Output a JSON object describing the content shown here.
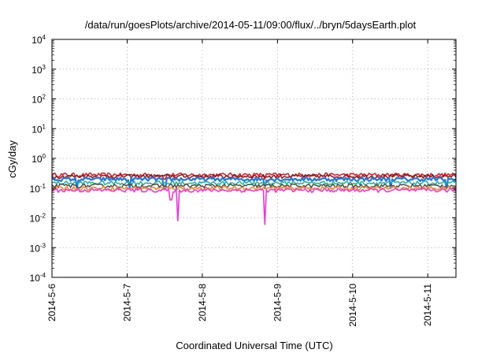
{
  "chart_data": {
    "type": "line",
    "title": "/data/run/goesPlots/archive/2014-05-11/09:00/flux/../bryn/5daysEarth.plot",
    "xlabel": "Coordinated Universal Time (UTC)",
    "ylabel": "cGy/day",
    "y_scale": "log",
    "ylim": [
      0.0001,
      10000
    ],
    "y_ticks": [
      {
        "base": "10",
        "exp": "4"
      },
      {
        "base": "10",
        "exp": "3"
      },
      {
        "base": "10",
        "exp": "2"
      },
      {
        "base": "10",
        "exp": "1"
      },
      {
        "base": "10",
        "exp": "0"
      },
      {
        "base": "10",
        "exp": "-1"
      },
      {
        "base": "10",
        "exp": "-2"
      },
      {
        "base": "10",
        "exp": "-3"
      },
      {
        "base": "10",
        "exp": "-4"
      }
    ],
    "xlim": [
      "2014-05-06T00:00",
      "2014-05-11T09:00"
    ],
    "x_ticks": [
      "2014-5-6",
      "2014-5-7",
      "2014-5-8",
      "2014-5-9",
      "2014-5-10",
      "2014-5-11"
    ],
    "grid": true,
    "series": [
      {
        "color": "#e8141c",
        "baseline": 0.28,
        "spikes": [
          [
            "2014-05-07T12:00",
            0.2
          ],
          [
            "2014-05-08T20:00",
            0.2
          ]
        ]
      },
      {
        "color": "#8b1a1a",
        "baseline": 0.25,
        "spikes": []
      },
      {
        "color": "#1f77e0",
        "baseline": 0.2,
        "spikes": [
          [
            "2014-05-06T08:00",
            0.1
          ],
          [
            "2014-05-07T01:00",
            0.1
          ],
          [
            "2014-05-07T12:00",
            0.1
          ],
          [
            "2014-05-08T20:00",
            0.1
          ],
          [
            "2014-05-10T12:00",
            0.1
          ],
          [
            "2014-05-11T06:00",
            0.1
          ]
        ]
      },
      {
        "color": "#1db39c",
        "baseline": 0.15,
        "spikes": []
      },
      {
        "color": "#4c4c4c",
        "baseline": 0.12,
        "spikes": []
      },
      {
        "color": "#f08a1c",
        "baseline": 0.1,
        "spikes": []
      },
      {
        "color": "#ff2adf",
        "baseline": 0.085,
        "spikes": [
          [
            "2014-05-07T14:00",
            0.04
          ],
          [
            "2014-05-07T16:00",
            0.008
          ],
          [
            "2014-05-08T20:00",
            0.006
          ]
        ]
      }
    ]
  }
}
